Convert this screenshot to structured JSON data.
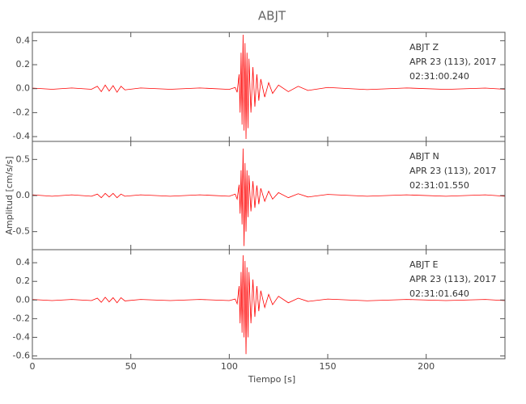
{
  "title": "ABJT",
  "xlabel": "Tiempo [s]",
  "ylabel": "Amplitud [cm/s/s]",
  "chart_data": [
    {
      "type": "line",
      "annotations": [
        "ABJT   Z",
        "APR 23 (113), 2017",
        "02:31:00.240"
      ],
      "x": [
        0,
        10,
        20,
        30,
        33,
        35,
        37,
        39,
        41,
        43,
        45,
        47,
        55,
        70,
        85,
        100,
        103,
        104,
        105,
        105.5,
        106,
        106.5,
        107,
        107.5,
        108,
        108.5,
        109,
        109.5,
        110,
        111,
        112,
        113,
        114,
        115,
        116,
        118,
        120,
        122,
        125,
        130,
        135,
        140,
        150,
        170,
        190,
        210,
        230,
        240
      ],
      "series": [
        {
          "color": "#ff0000",
          "values": [
            0.005,
            -0.005,
            0.006,
            -0.005,
            0.02,
            -0.025,
            0.03,
            -0.02,
            0.025,
            -0.03,
            0.02,
            -0.01,
            0.006,
            -0.005,
            0.006,
            -0.006,
            0.01,
            -0.03,
            0.12,
            -0.2,
            0.3,
            -0.3,
            0.45,
            -0.35,
            0.38,
            -0.42,
            0.3,
            -0.33,
            0.25,
            -0.2,
            0.18,
            -0.15,
            0.12,
            -0.1,
            0.08,
            -0.07,
            0.05,
            -0.04,
            0.03,
            -0.025,
            0.02,
            -0.015,
            0.01,
            -0.008,
            0.006,
            -0.006,
            0.005,
            -0.005
          ]
        }
      ],
      "xlim": [
        0,
        240
      ],
      "xticks": [
        0,
        50,
        100,
        150,
        200
      ],
      "ylim": [
        -0.44,
        0.47
      ],
      "yticks": [
        -0.4,
        -0.2,
        {
          "value": 0,
          "label": "0.0"
        },
        0.2,
        0.4
      ]
    },
    {
      "type": "line",
      "annotations": [
        "ABJT   N",
        "APR 23 (113), 2017",
        "02:31:01.550"
      ],
      "x": [
        0,
        10,
        20,
        30,
        33,
        35,
        37,
        39,
        41,
        43,
        45,
        47,
        55,
        70,
        85,
        100,
        103,
        104,
        105,
        105.5,
        106,
        106.5,
        107,
        107.5,
        108,
        108.5,
        109,
        109.5,
        110,
        111,
        112,
        113,
        114,
        115,
        116,
        118,
        120,
        122,
        125,
        130,
        135,
        140,
        150,
        170,
        190,
        210,
        230,
        240
      ],
      "series": [
        {
          "color": "#ff0000",
          "values": [
            0.01,
            -0.01,
            0.01,
            -0.01,
            0.02,
            -0.03,
            0.03,
            -0.02,
            0.03,
            -0.03,
            0.02,
            -0.01,
            0.01,
            -0.01,
            0.01,
            -0.01,
            0.02,
            -0.05,
            0.15,
            -0.25,
            0.35,
            -0.4,
            0.65,
            -0.7,
            0.45,
            -0.5,
            0.35,
            -0.3,
            0.28,
            -0.22,
            0.2,
            -0.17,
            0.14,
            -0.12,
            0.1,
            -0.08,
            0.06,
            -0.05,
            0.04,
            -0.03,
            0.025,
            -0.02,
            0.015,
            -0.01,
            0.01,
            -0.01,
            0.01,
            -0.01
          ]
        }
      ],
      "xlim": [
        0,
        240
      ],
      "xticks": [
        0,
        50,
        100,
        150,
        200
      ],
      "ylim": [
        -0.75,
        0.75
      ],
      "yticks": [
        -0.5,
        {
          "value": 0,
          "label": "0.0"
        },
        0.5
      ]
    },
    {
      "type": "line",
      "annotations": [
        "ABJT   E",
        "APR 23 (113), 2017",
        "02:31:01.640"
      ],
      "x": [
        0,
        10,
        20,
        30,
        33,
        35,
        37,
        39,
        41,
        43,
        45,
        47,
        55,
        70,
        85,
        100,
        103,
        104,
        105,
        105.5,
        106,
        106.5,
        107,
        107.5,
        108,
        108.5,
        109,
        109.5,
        110,
        111,
        112,
        113,
        114,
        115,
        116,
        118,
        120,
        122,
        125,
        130,
        135,
        140,
        150,
        170,
        190,
        210,
        230,
        240
      ],
      "series": [
        {
          "color": "#ff0000",
          "values": [
            0.006,
            -0.006,
            0.006,
            -0.006,
            0.02,
            -0.025,
            0.03,
            -0.02,
            0.025,
            -0.03,
            0.025,
            -0.01,
            0.006,
            -0.006,
            0.006,
            -0.006,
            0.01,
            -0.04,
            0.15,
            -0.25,
            0.3,
            -0.35,
            0.48,
            -0.4,
            0.42,
            -0.58,
            0.35,
            -0.4,
            0.3,
            -0.25,
            0.22,
            -0.18,
            0.15,
            -0.12,
            0.1,
            -0.08,
            0.06,
            -0.05,
            0.04,
            -0.03,
            0.02,
            -0.015,
            0.01,
            -0.008,
            0.006,
            -0.006,
            0.006,
            -0.006
          ]
        }
      ],
      "xlim": [
        0,
        240
      ],
      "xticks": [
        0,
        50,
        100,
        150,
        200
      ],
      "ylim": [
        -0.63,
        0.54
      ],
      "yticks": [
        -0.6,
        -0.4,
        -0.2,
        {
          "value": 0,
          "label": "0.0"
        },
        0.2,
        0.4
      ]
    }
  ]
}
